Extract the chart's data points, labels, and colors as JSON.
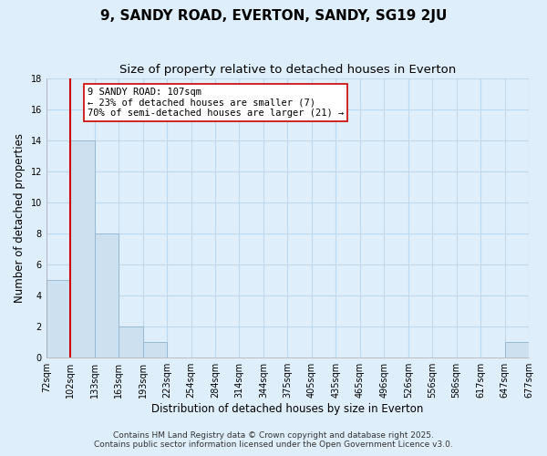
{
  "title": "9, SANDY ROAD, EVERTON, SANDY, SG19 2JU",
  "subtitle": "Size of property relative to detached houses in Everton",
  "xlabel": "Distribution of detached houses by size in Everton",
  "ylabel": "Number of detached properties",
  "footnote1": "Contains HM Land Registry data © Crown copyright and database right 2025.",
  "footnote2": "Contains public sector information licensed under the Open Government Licence v3.0.",
  "bins": [
    "72sqm",
    "102sqm",
    "133sqm",
    "163sqm",
    "193sqm",
    "223sqm",
    "254sqm",
    "284sqm",
    "314sqm",
    "344sqm",
    "375sqm",
    "405sqm",
    "435sqm",
    "465sqm",
    "496sqm",
    "526sqm",
    "556sqm",
    "586sqm",
    "617sqm",
    "647sqm",
    "677sqm"
  ],
  "values": [
    5,
    14,
    8,
    2,
    1,
    0,
    0,
    0,
    0,
    0,
    0,
    0,
    0,
    0,
    0,
    0,
    0,
    0,
    0,
    1
  ],
  "bar_color": "#cce0f0",
  "bar_edge_color": "#9ab8d0",
  "grid_color": "#c0d8ec",
  "background_color": "#deeefa",
  "vline_color": "#cc0000",
  "ylim": [
    0,
    18
  ],
  "yticks": [
    0,
    2,
    4,
    6,
    8,
    10,
    12,
    14,
    16,
    18
  ],
  "annotation_line1": "9 SANDY ROAD: 107sqm",
  "annotation_line2": "← 23% of detached houses are smaller (7)",
  "annotation_line3": "70% of semi-detached houses are larger (21) →",
  "annotation_box_color": "#ffffff",
  "annotation_box_edge": "#cc0000",
  "title_fontsize": 11,
  "subtitle_fontsize": 9.5,
  "axis_label_fontsize": 8.5,
  "tick_fontsize": 7,
  "annotation_fontsize": 7.5,
  "footnote_fontsize": 6.5
}
